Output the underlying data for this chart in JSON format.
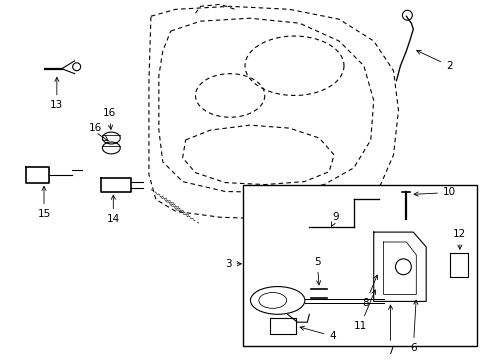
{
  "bg_color": "#ffffff",
  "line_color": "#000000",
  "lw": 0.8,
  "fs": 7.5,
  "fig_w": 4.89,
  "fig_h": 3.6,
  "dpi": 100
}
